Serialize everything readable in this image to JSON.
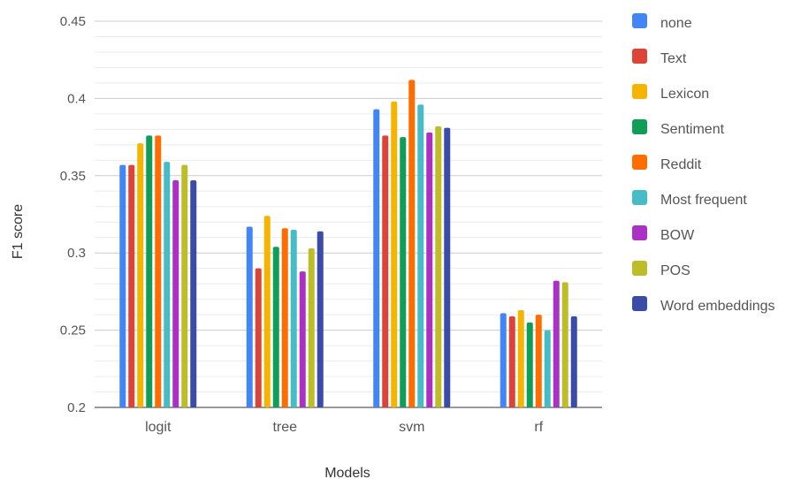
{
  "chart_data": {
    "type": "bar",
    "title": "",
    "xlabel": "Models",
    "ylabel": "F1 score",
    "ylim": [
      0.2,
      0.45
    ],
    "yticks": [
      0.2,
      0.25,
      0.3,
      0.35,
      0.4,
      0.45
    ],
    "ytick_labels": [
      "0.2",
      "0.25",
      "0.3",
      "0.35",
      "0.4",
      "0.45"
    ],
    "grid": true,
    "legend_position": "right",
    "categories": [
      "logit",
      "tree",
      "svm",
      "rf"
    ],
    "series": [
      {
        "name": "none",
        "color": "#4285F4",
        "values": [
          0.357,
          0.317,
          0.393,
          0.261
        ]
      },
      {
        "name": "Text",
        "color": "#DB4437",
        "values": [
          0.357,
          0.29,
          0.376,
          0.259
        ]
      },
      {
        "name": "Lexicon",
        "color": "#F4B400",
        "values": [
          0.371,
          0.324,
          0.398,
          0.263
        ]
      },
      {
        "name": "Sentiment",
        "color": "#0F9D58",
        "values": [
          0.376,
          0.304,
          0.375,
          0.255
        ]
      },
      {
        "name": "Reddit",
        "color": "#FF6D00",
        "values": [
          0.376,
          0.316,
          0.412,
          0.26
        ]
      },
      {
        "name": "Most frequent",
        "color": "#46BDC6",
        "values": [
          0.359,
          0.315,
          0.396,
          0.25
        ]
      },
      {
        "name": "BOW",
        "color": "#AB30C4",
        "values": [
          0.347,
          0.288,
          0.378,
          0.282
        ]
      },
      {
        "name": "POS",
        "color": "#BDBD29",
        "values": [
          0.357,
          0.303,
          0.382,
          0.281
        ]
      },
      {
        "name": "Word embeddings",
        "color": "#3B4BA8",
        "values": [
          0.347,
          0.314,
          0.381,
          0.259
        ]
      }
    ]
  }
}
